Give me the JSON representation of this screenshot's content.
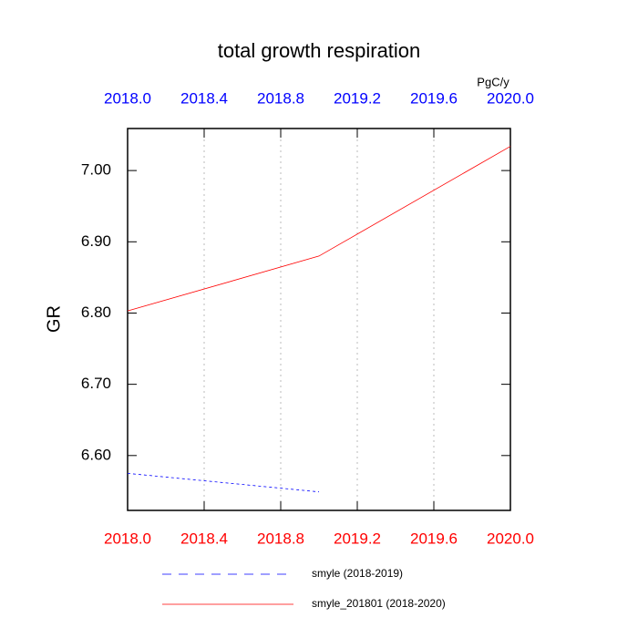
{
  "chart_data": {
    "type": "line",
    "title": "total growth respiration",
    "units": "PgC/y",
    "y_label": "GR",
    "x": [
      2018,
      2019,
      2020
    ],
    "series": [
      {
        "name": "smyle (2018-2019)",
        "color": "#0000ff",
        "dash": true,
        "values": [
          6.575,
          6.549,
          null
        ]
      },
      {
        "name": "smyle_201801 (2018-2020)",
        "color": "#ff0000",
        "dash": false,
        "values": [
          6.803,
          6.88,
          7.034
        ]
      }
    ],
    "xlim": [
      2018,
      2020
    ],
    "xticks": [
      {
        "value": 2018,
        "label": "2018.0"
      },
      {
        "value": 2018.4,
        "label": "2018.4"
      },
      {
        "value": 2018.8,
        "label": "2018.8"
      },
      {
        "value": 2019.2,
        "label": "2019.2"
      },
      {
        "value": 2019.6,
        "label": "2019.6"
      },
      {
        "value": 2020,
        "label": "2020.0"
      }
    ],
    "ylim": [
      6.523,
      7.059
    ],
    "yticks": [
      {
        "value": 6.6,
        "label": "6.60"
      },
      {
        "value": 6.7,
        "label": "6.70"
      },
      {
        "value": 6.8,
        "label": "6.80"
      },
      {
        "value": 6.9,
        "label": "6.90"
      },
      {
        "value": 7.0,
        "label": "7.00"
      }
    ],
    "grid": true,
    "top_axis_color": "#0000ff",
    "bottom_axis_color": "#ff0000"
  }
}
